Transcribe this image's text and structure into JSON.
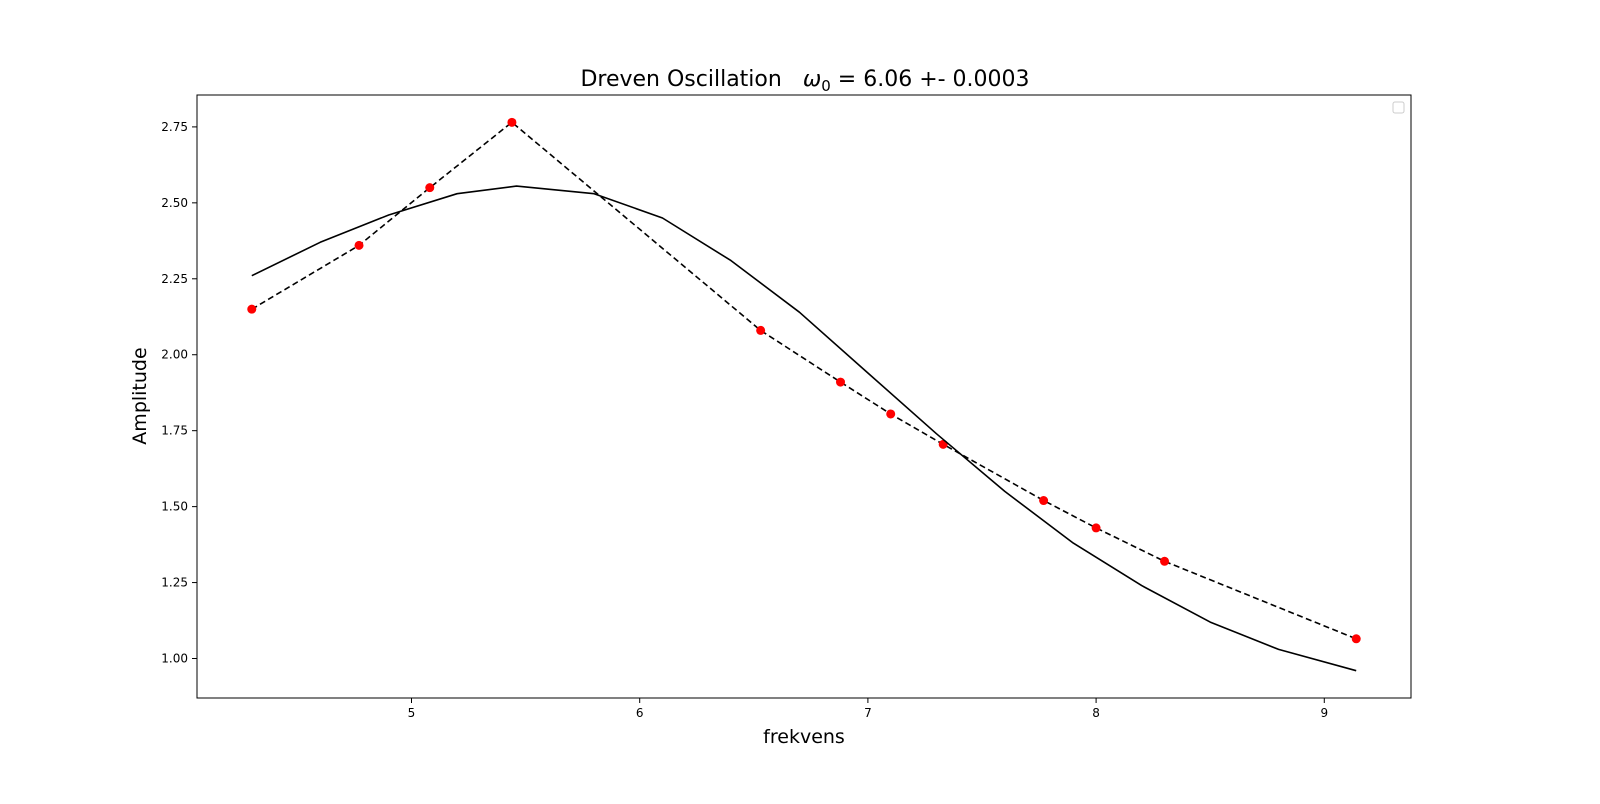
{
  "chart_data": {
    "type": "line",
    "title_main": "Dreven Oscillation",
    "title_omega_symbol": "ω",
    "title_omega_subscript": "0",
    "title_value": " = 6.06 +- 0.0003",
    "xlabel": "frekvens",
    "ylabel": "Amplitude",
    "xlim": [
      4.06,
      9.38
    ],
    "ylim": [
      0.87,
      2.855
    ],
    "xticks": [
      5,
      6,
      7,
      8,
      9
    ],
    "xtick_labels": [
      "5",
      "6",
      "7",
      "8",
      "9"
    ],
    "yticks": [
      1.0,
      1.25,
      1.5,
      1.75,
      2.0,
      2.25,
      2.5,
      2.75
    ],
    "ytick_labels": [
      "1.00",
      "1.25",
      "1.50",
      "1.75",
      "2.00",
      "2.25",
      "2.50",
      "2.75"
    ],
    "grid": false,
    "legend": "top-right (empty)",
    "series": [
      {
        "style": "dashed line with red markers",
        "line_color": "#000000",
        "marker_color": "#ff0000",
        "x": [
          4.3,
          4.77,
          5.08,
          5.44,
          6.53,
          6.88,
          7.1,
          7.33,
          7.77,
          8.0,
          8.3,
          9.14
        ],
        "y": [
          2.15,
          2.36,
          2.55,
          2.765,
          2.08,
          1.91,
          1.805,
          1.705,
          1.52,
          1.43,
          1.32,
          1.065
        ]
      },
      {
        "style": "solid line",
        "line_color": "#000000",
        "x": [
          4.3,
          4.6,
          4.9,
          5.2,
          5.46,
          5.8,
          6.1,
          6.4,
          6.7,
          7.0,
          7.3,
          7.6,
          7.9,
          8.2,
          8.5,
          8.8,
          9.14
        ],
        "y": [
          2.26,
          2.37,
          2.46,
          2.53,
          2.555,
          2.53,
          2.45,
          2.31,
          2.14,
          1.94,
          1.74,
          1.55,
          1.38,
          1.24,
          1.12,
          1.03,
          0.96
        ]
      }
    ]
  }
}
